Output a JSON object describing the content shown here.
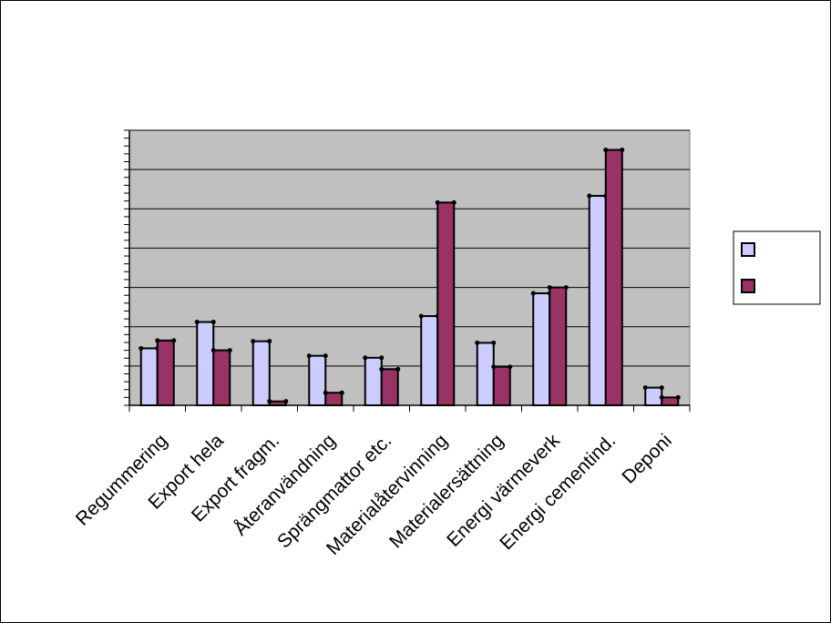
{
  "chart_data": {
    "type": "bar",
    "categories": [
      "Regummering",
      "Export hela",
      "Export fragm.",
      "Återanvändning",
      "Sprängmattor etc.",
      "Materialåtervinning",
      "Materialersättning",
      "Energi värmeverk",
      "Energi cementind.",
      "Deponi"
    ],
    "series": [
      {
        "values": [
          14.5,
          21.2,
          16.3,
          12.6,
          12.1,
          22.7,
          15.9,
          28.5,
          53.3,
          4.5
        ],
        "color": "#ccccff"
      },
      {
        "values": [
          16.5,
          14.0,
          1.0,
          3.2,
          9.2,
          51.6,
          9.8,
          30.0,
          65.0,
          2.0
        ],
        "color": "#993366"
      }
    ],
    "ylim": [
      0,
      70
    ],
    "y_major_step": 10,
    "y_minor_step": 2,
    "grid": true,
    "plot_background": "#c0c0c0",
    "legend_position": "right"
  }
}
